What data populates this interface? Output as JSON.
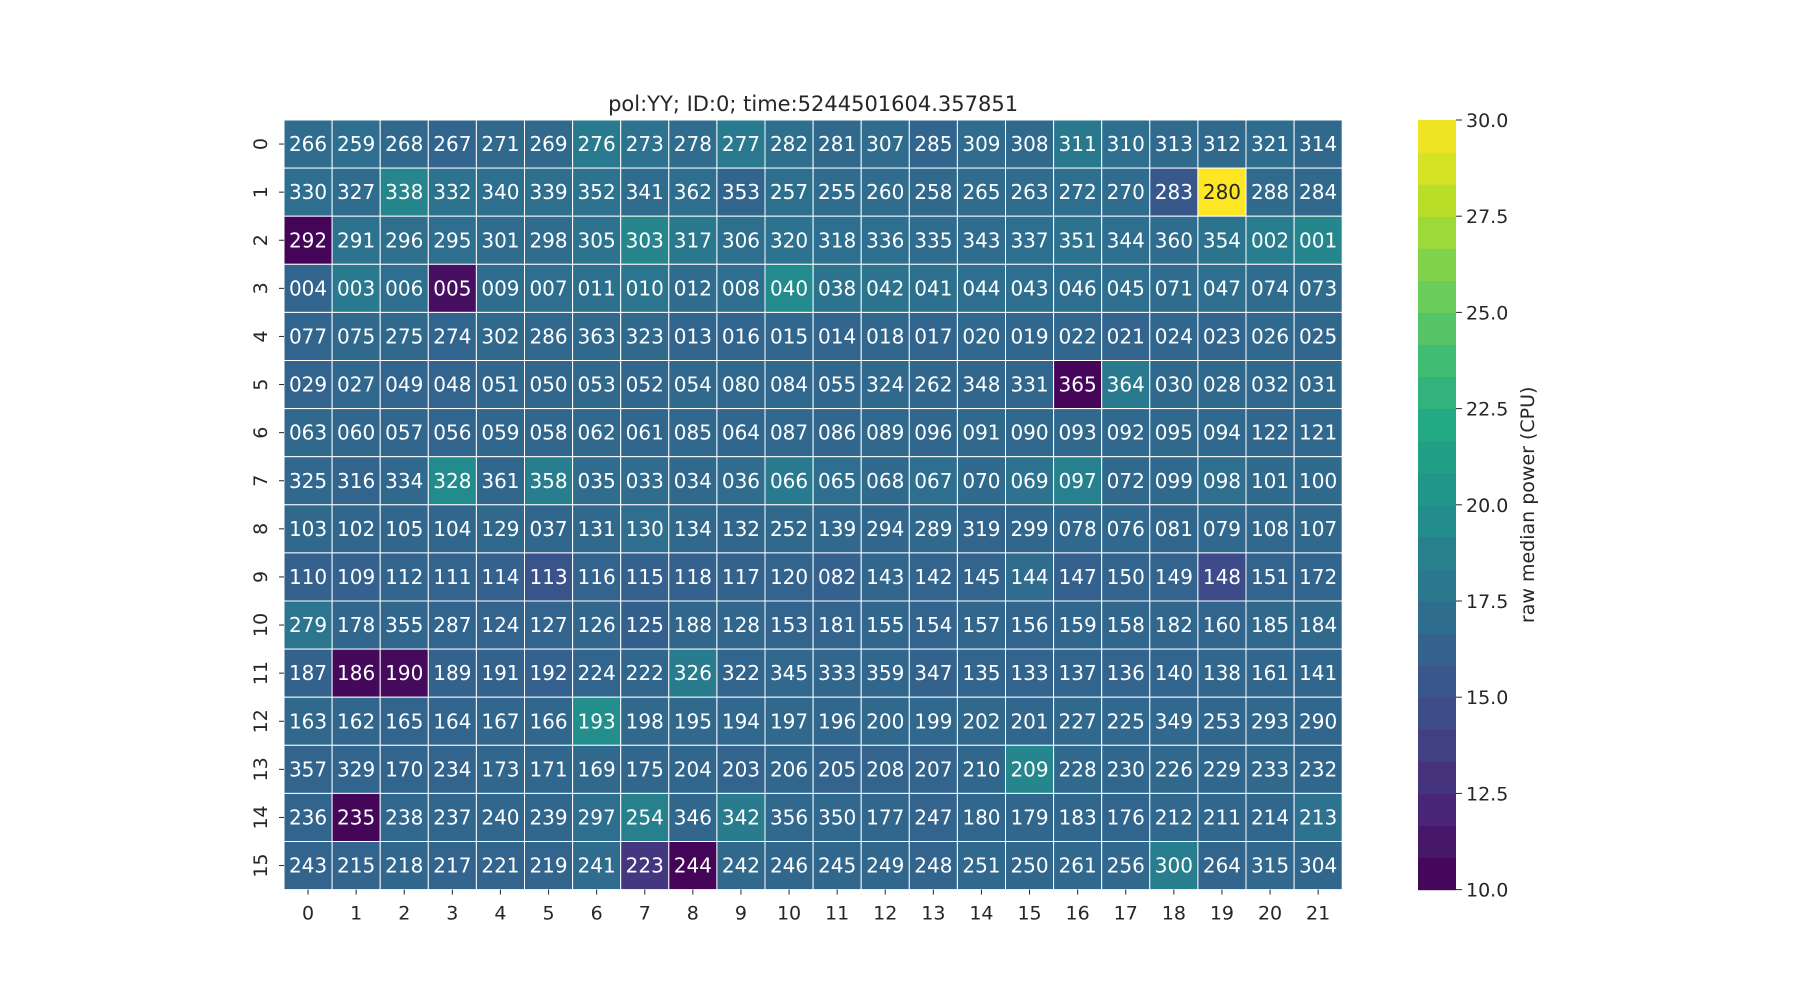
{
  "chart_data": {
    "type": "heatmap",
    "title": "pol:YY; ID:0; time:5244501604.357851",
    "colorbar_label": "raw median power (CPU)",
    "colorbar_range": [
      10.0,
      30.0
    ],
    "colorbar_ticks": [
      "10.0",
      "12.5",
      "15.0",
      "17.5",
      "20.0",
      "22.5",
      "25.0",
      "27.5",
      "30.0"
    ],
    "colormap": "viridis",
    "x_ticks": [
      "0",
      "1",
      "2",
      "3",
      "4",
      "5",
      "6",
      "7",
      "8",
      "9",
      "10",
      "11",
      "12",
      "13",
      "14",
      "15",
      "16",
      "17",
      "18",
      "19",
      "20",
      "21"
    ],
    "y_ticks": [
      "0",
      "1",
      "2",
      "3",
      "4",
      "5",
      "6",
      "7",
      "8",
      "9",
      "10",
      "11",
      "12",
      "13",
      "14",
      "15"
    ],
    "annotations": [
      [
        "266",
        "259",
        "268",
        "267",
        "271",
        "269",
        "276",
        "273",
        "278",
        "277",
        "282",
        "281",
        "307",
        "285",
        "309",
        "308",
        "311",
        "310",
        "313",
        "312",
        "321",
        "314"
      ],
      [
        "330",
        "327",
        "338",
        "332",
        "340",
        "339",
        "352",
        "341",
        "362",
        "353",
        "257",
        "255",
        "260",
        "258",
        "265",
        "263",
        "272",
        "270",
        "283",
        "280",
        "288",
        "284"
      ],
      [
        "292",
        "291",
        "296",
        "295",
        "301",
        "298",
        "305",
        "303",
        "317",
        "306",
        "320",
        "318",
        "336",
        "335",
        "343",
        "337",
        "351",
        "344",
        "360",
        "354",
        "002",
        "001"
      ],
      [
        "004",
        "003",
        "006",
        "005",
        "009",
        "007",
        "011",
        "010",
        "012",
        "008",
        "040",
        "038",
        "042",
        "041",
        "044",
        "043",
        "046",
        "045",
        "071",
        "047",
        "074",
        "073"
      ],
      [
        "077",
        "075",
        "275",
        "274",
        "302",
        "286",
        "363",
        "323",
        "013",
        "016",
        "015",
        "014",
        "018",
        "017",
        "020",
        "019",
        "022",
        "021",
        "024",
        "023",
        "026",
        "025"
      ],
      [
        "029",
        "027",
        "049",
        "048",
        "051",
        "050",
        "053",
        "052",
        "054",
        "080",
        "084",
        "055",
        "324",
        "262",
        "348",
        "331",
        "365",
        "364",
        "030",
        "028",
        "032",
        "031"
      ],
      [
        "063",
        "060",
        "057",
        "056",
        "059",
        "058",
        "062",
        "061",
        "085",
        "064",
        "087",
        "086",
        "089",
        "096",
        "091",
        "090",
        "093",
        "092",
        "095",
        "094",
        "122",
        "121"
      ],
      [
        "325",
        "316",
        "334",
        "328",
        "361",
        "358",
        "035",
        "033",
        "034",
        "036",
        "066",
        "065",
        "068",
        "067",
        "070",
        "069",
        "097",
        "072",
        "099",
        "098",
        "101",
        "100"
      ],
      [
        "103",
        "102",
        "105",
        "104",
        "129",
        "037",
        "131",
        "130",
        "134",
        "132",
        "252",
        "139",
        "294",
        "289",
        "319",
        "299",
        "078",
        "076",
        "081",
        "079",
        "108",
        "107"
      ],
      [
        "110",
        "109",
        "112",
        "111",
        "114",
        "113",
        "116",
        "115",
        "118",
        "117",
        "120",
        "082",
        "143",
        "142",
        "145",
        "144",
        "147",
        "150",
        "149",
        "148",
        "151",
        "172"
      ],
      [
        "279",
        "178",
        "355",
        "287",
        "124",
        "127",
        "126",
        "125",
        "188",
        "128",
        "153",
        "181",
        "155",
        "154",
        "157",
        "156",
        "159",
        "158",
        "182",
        "160",
        "185",
        "184"
      ],
      [
        "187",
        "186",
        "190",
        "189",
        "191",
        "192",
        "224",
        "222",
        "326",
        "322",
        "345",
        "333",
        "359",
        "347",
        "135",
        "133",
        "137",
        "136",
        "140",
        "138",
        "161",
        "141"
      ],
      [
        "163",
        "162",
        "165",
        "164",
        "167",
        "166",
        "193",
        "198",
        "195",
        "194",
        "197",
        "196",
        "200",
        "199",
        "202",
        "201",
        "227",
        "225",
        "349",
        "253",
        "293",
        "290"
      ],
      [
        "357",
        "329",
        "170",
        "234",
        "173",
        "171",
        "169",
        "175",
        "204",
        "203",
        "206",
        "205",
        "208",
        "207",
        "210",
        "209",
        "228",
        "230",
        "226",
        "229",
        "233",
        "232"
      ],
      [
        "236",
        "235",
        "238",
        "237",
        "240",
        "239",
        "297",
        "254",
        "346",
        "342",
        "356",
        "350",
        "177",
        "247",
        "180",
        "179",
        "183",
        "176",
        "212",
        "211",
        "214",
        "213"
      ],
      [
        "243",
        "215",
        "218",
        "217",
        "221",
        "219",
        "241",
        "223",
        "244",
        "242",
        "246",
        "245",
        "249",
        "248",
        "251",
        "250",
        "261",
        "256",
        "300",
        "264",
        "315",
        "304"
      ]
    ],
    "values": [
      [
        17.0,
        17.2,
        16.8,
        16.5,
        16.8,
        16.8,
        18.2,
        17.5,
        17.0,
        18.2,
        17.3,
        16.8,
        17.0,
        16.5,
        17.0,
        16.8,
        18.0,
        17.2,
        16.9,
        16.8,
        17.1,
        16.8
      ],
      [
        17.2,
        17.0,
        19.0,
        17.5,
        17.2,
        17.3,
        17.5,
        17.0,
        17.2,
        16.5,
        17.4,
        17.0,
        17.0,
        16.8,
        17.0,
        17.0,
        17.2,
        17.0,
        15.5,
        30.0,
        16.9,
        16.8
      ],
      [
        10.2,
        17.5,
        17.3,
        17.2,
        17.0,
        17.0,
        17.5,
        19.0,
        18.0,
        17.3,
        17.5,
        17.2,
        17.2,
        17.0,
        17.0,
        17.2,
        17.5,
        17.2,
        17.0,
        17.7,
        18.5,
        19.2
      ],
      [
        16.5,
        18.2,
        17.2,
        10.8,
        17.1,
        17.2,
        17.4,
        17.8,
        17.0,
        17.2,
        19.5,
        17.7,
        17.7,
        17.4,
        17.2,
        17.2,
        17.2,
        17.2,
        17.0,
        17.2,
        17.0,
        17.0
      ],
      [
        16.5,
        16.8,
        16.8,
        16.5,
        16.8,
        16.7,
        16.8,
        16.8,
        16.5,
        16.5,
        16.6,
        16.5,
        16.6,
        16.5,
        16.7,
        16.6,
        16.6,
        16.4,
        16.6,
        16.5,
        16.7,
        16.6
      ],
      [
        16.4,
        16.7,
        16.5,
        16.4,
        16.6,
        16.6,
        16.8,
        16.6,
        16.8,
        16.7,
        16.7,
        16.6,
        16.8,
        16.6,
        16.6,
        16.6,
        10.3,
        18.2,
        16.8,
        16.8,
        16.7,
        16.8
      ],
      [
        16.8,
        16.6,
        16.6,
        16.5,
        16.6,
        16.6,
        16.8,
        16.6,
        16.7,
        16.6,
        16.7,
        16.6,
        16.8,
        16.6,
        16.8,
        16.7,
        16.8,
        16.7,
        16.8,
        16.7,
        16.6,
        16.7
      ],
      [
        16.7,
        16.5,
        16.7,
        19.5,
        16.6,
        18.5,
        17.0,
        17.0,
        16.8,
        17.0,
        18.2,
        17.2,
        16.9,
        17.2,
        16.9,
        17.5,
        18.6,
        16.8,
        16.8,
        17.3,
        16.9,
        16.9
      ],
      [
        16.8,
        16.6,
        16.6,
        16.6,
        16.8,
        16.6,
        16.8,
        17.2,
        16.8,
        16.6,
        16.8,
        16.7,
        16.6,
        16.8,
        16.5,
        16.6,
        16.7,
        16.7,
        16.6,
        16.7,
        16.7,
        16.8
      ],
      [
        16.2,
        16.2,
        16.5,
        16.4,
        16.2,
        15.2,
        16.4,
        16.2,
        16.2,
        16.3,
        16.4,
        16.2,
        16.6,
        16.4,
        16.4,
        17.0,
        16.2,
        16.4,
        16.4,
        14.6,
        16.4,
        16.5
      ],
      [
        17.8,
        16.6,
        16.6,
        16.5,
        16.4,
        16.4,
        16.6,
        16.1,
        16.6,
        16.6,
        16.4,
        16.4,
        16.6,
        16.4,
        16.6,
        16.5,
        16.6,
        16.6,
        16.6,
        16.5,
        16.8,
        16.8
      ],
      [
        16.3,
        10.4,
        10.5,
        16.3,
        16.3,
        16.2,
        16.5,
        16.6,
        18.3,
        16.5,
        16.7,
        16.6,
        16.6,
        16.3,
        16.5,
        16.4,
        16.5,
        16.4,
        16.5,
        16.6,
        16.6,
        16.6
      ],
      [
        16.8,
        16.6,
        16.5,
        16.5,
        16.6,
        16.6,
        19.8,
        16.8,
        16.8,
        16.7,
        16.8,
        16.6,
        16.8,
        16.7,
        16.8,
        16.6,
        16.8,
        16.7,
        16.7,
        16.6,
        16.8,
        16.6
      ],
      [
        16.4,
        16.5,
        16.5,
        16.4,
        16.6,
        16.6,
        16.8,
        16.6,
        16.6,
        16.4,
        16.6,
        16.4,
        16.4,
        16.4,
        16.6,
        19.2,
        16.7,
        16.6,
        16.8,
        16.6,
        16.8,
        16.6
      ],
      [
        16.5,
        10.3,
        16.7,
        16.6,
        16.6,
        16.6,
        17.2,
        18.7,
        16.6,
        18.3,
        16.7,
        16.7,
        16.6,
        16.4,
        16.6,
        16.6,
        16.6,
        16.5,
        16.7,
        16.6,
        16.6,
        17.5
      ],
      [
        16.4,
        16.4,
        16.6,
        16.4,
        16.4,
        16.4,
        17.0,
        13.2,
        10.2,
        16.8,
        16.6,
        16.6,
        16.6,
        16.4,
        16.7,
        16.6,
        16.7,
        16.7,
        18.5,
        16.5,
        16.7,
        16.6
      ]
    ]
  }
}
